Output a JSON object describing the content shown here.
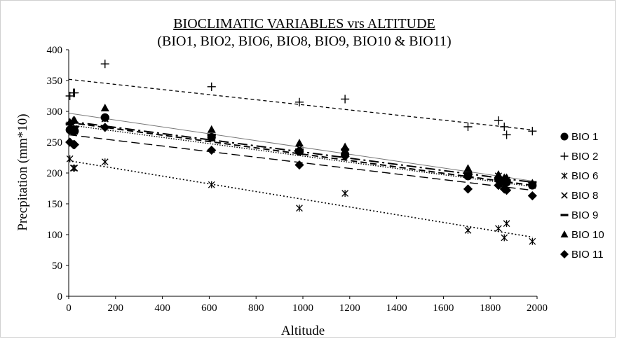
{
  "chart_data": {
    "type": "scatter",
    "title": "BIOCLIMATIC VARIABLES vrs ALTITUDE",
    "subtitle": "(BIO1, BIO2, BIO6, BIO8, BIO9, BIO10 & BIO11)",
    "xlabel": "Altitude",
    "ylabel": "Precpitation (mm*10)",
    "xlim": [
      0,
      2000
    ],
    "ylim": [
      0,
      400
    ],
    "xticks": [
      0,
      200,
      400,
      600,
      800,
      1000,
      1200,
      1400,
      1600,
      1800,
      2000
    ],
    "yticks": [
      0,
      50,
      100,
      150,
      200,
      250,
      300,
      350,
      400
    ],
    "grid": false,
    "legend_position": "right",
    "x": [
      5,
      20,
      25,
      155,
      610,
      985,
      1180,
      1705,
      1835,
      1860,
      1870,
      1980
    ],
    "series": [
      {
        "name": "BIO 1",
        "marker": "circle",
        "values": [
          270,
          268,
          268,
          290,
          258,
          235,
          230,
          195,
          190,
          185,
          185,
          180
        ],
        "trend": {
          "start": 282,
          "end": 180,
          "style": "dash-long"
        }
      },
      {
        "name": "BIO 2",
        "marker": "plus",
        "values": [
          325,
          330,
          330,
          377,
          340,
          315,
          320,
          275,
          285,
          275,
          262,
          268
        ],
        "trend": {
          "start": 352,
          "end": 270,
          "style": "dash-short"
        }
      },
      {
        "name": "BIO 6",
        "marker": "asterisk",
        "values": [
          223,
          208,
          208,
          218,
          181,
          143,
          167,
          107,
          110,
          95,
          118,
          89
        ],
        "trend": {
          "start": 220,
          "end": 96,
          "style": "dot"
        }
      },
      {
        "name": "BIO 8",
        "marker": "x",
        "values": [
          278,
          270,
          268,
          288,
          256,
          240,
          232,
          196,
          195,
          188,
          188,
          180
        ],
        "trend": {
          "start": 278,
          "end": 178,
          "style": "dot-fine"
        }
      },
      {
        "name": "BIO 9",
        "marker": "dash",
        "values": [
          280,
          275,
          275,
          290,
          262,
          238,
          238,
          200,
          192,
          188,
          188,
          185
        ],
        "trend": {
          "start": 284,
          "end": 185,
          "style": "dash-dot"
        }
      },
      {
        "name": "BIO 10",
        "marker": "triangle",
        "values": [
          282,
          285,
          285,
          305,
          270,
          248,
          242,
          207,
          197,
          192,
          192,
          183
        ],
        "trend": {
          "start": 297,
          "end": 187,
          "style": "solid"
        }
      },
      {
        "name": "BIO 11",
        "marker": "diamond",
        "values": [
          250,
          246,
          246,
          274,
          237,
          213,
          227,
          174,
          180,
          174,
          172,
          163
        ],
        "trend": {
          "start": 262,
          "end": 172,
          "style": "dash-medium"
        }
      }
    ]
  }
}
